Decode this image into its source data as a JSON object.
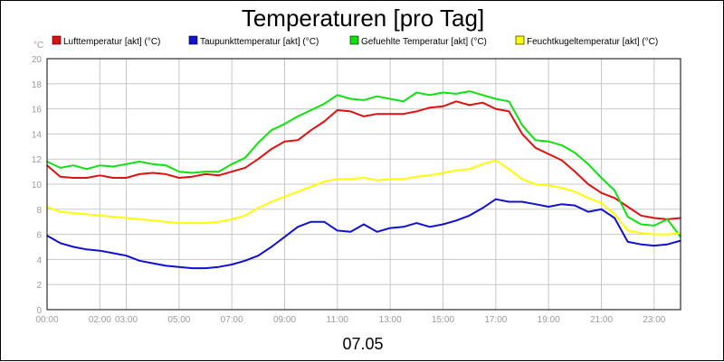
{
  "chart_data": {
    "type": "line",
    "title": "Temperaturen [pro Tag]",
    "date_label": "07.05",
    "y_unit": "°C",
    "ylim": [
      0,
      20
    ],
    "y_ticks": [
      0,
      2,
      4,
      6,
      8,
      10,
      12,
      14,
      16,
      18,
      20
    ],
    "xlim": [
      0,
      24
    ],
    "x_ticks": [
      {
        "label": "00:00",
        "value": 0
      },
      {
        "label": "02:00",
        "value": 2
      },
      {
        "label": "03:00",
        "value": 3
      },
      {
        "label": "05:00",
        "value": 5
      },
      {
        "label": "07:00",
        "value": 7
      },
      {
        "label": "09:00",
        "value": 9
      },
      {
        "label": "11:00",
        "value": 11
      },
      {
        "label": "13:00",
        "value": 13
      },
      {
        "label": "15:00",
        "value": 15
      },
      {
        "label": "17:00",
        "value": 17
      },
      {
        "label": "19:00",
        "value": 19
      },
      {
        "label": "21:00",
        "value": 21
      },
      {
        "label": "23:00",
        "value": 23
      }
    ],
    "grid": true,
    "legend_position": "top",
    "series": [
      {
        "name": "Lufttemperatur [akt] (°C)",
        "color": "#e01010",
        "x": [
          0,
          0.5,
          1,
          1.5,
          2,
          2.5,
          3,
          3.5,
          4,
          4.5,
          5,
          5.5,
          6,
          6.5,
          7,
          7.5,
          8,
          8.5,
          9,
          9.5,
          10,
          10.5,
          11,
          11.5,
          12,
          12.5,
          13,
          13.5,
          14,
          14.5,
          15,
          15.5,
          16,
          16.5,
          17,
          17.5,
          18,
          18.5,
          19,
          19.5,
          20,
          20.5,
          21,
          21.5,
          22,
          22.5,
          23,
          23.5,
          24
        ],
        "y": [
          11.5,
          10.6,
          10.5,
          10.5,
          10.7,
          10.5,
          10.5,
          10.8,
          10.9,
          10.8,
          10.5,
          10.6,
          10.8,
          10.7,
          11.0,
          11.3,
          12.0,
          12.8,
          13.4,
          13.5,
          14.3,
          15.0,
          15.9,
          15.8,
          15.4,
          15.6,
          15.6,
          15.6,
          15.8,
          16.1,
          16.2,
          16.6,
          16.3,
          16.5,
          16.0,
          15.8,
          14.0,
          12.9,
          12.4,
          11.9,
          11.0,
          10.0,
          9.3,
          8.9,
          8.2,
          7.5,
          7.3,
          7.2,
          7.3
        ]
      },
      {
        "name": "Taupunkttemperatur [akt] (°C)",
        "color": "#1010d0",
        "x": [
          0,
          0.5,
          1,
          1.5,
          2,
          2.5,
          3,
          3.5,
          4,
          4.5,
          5,
          5.5,
          6,
          6.5,
          7,
          7.5,
          8,
          8.5,
          9,
          9.5,
          10,
          10.5,
          11,
          11.5,
          12,
          12.5,
          13,
          13.5,
          14,
          14.5,
          15,
          15.5,
          16,
          16.5,
          17,
          17.5,
          18,
          18.5,
          19,
          19.5,
          20,
          20.5,
          21,
          21.5,
          22,
          22.5,
          23,
          23.5,
          24
        ],
        "y": [
          5.9,
          5.3,
          5.0,
          4.8,
          4.7,
          4.5,
          4.3,
          3.9,
          3.7,
          3.5,
          3.4,
          3.3,
          3.3,
          3.4,
          3.6,
          3.9,
          4.3,
          5.0,
          5.8,
          6.6,
          7.0,
          7.0,
          6.3,
          6.2,
          6.8,
          6.2,
          6.5,
          6.6,
          6.9,
          6.6,
          6.8,
          7.1,
          7.5,
          8.1,
          8.8,
          8.6,
          8.6,
          8.4,
          8.2,
          8.4,
          8.3,
          7.8,
          8.0,
          7.3,
          5.4,
          5.2,
          5.1,
          5.2,
          5.5
        ]
      },
      {
        "name": "Gefuehlte Temperatur [akt] (°C)",
        "color": "#10e010",
        "x": [
          0,
          0.5,
          1,
          1.5,
          2,
          2.5,
          3,
          3.5,
          4,
          4.5,
          5,
          5.5,
          6,
          6.5,
          7,
          7.5,
          8,
          8.5,
          9,
          9.5,
          10,
          10.5,
          11,
          11.5,
          12,
          12.5,
          13,
          13.5,
          14,
          14.5,
          15,
          15.5,
          16,
          16.5,
          17,
          17.5,
          18,
          18.5,
          19,
          19.5,
          20,
          20.5,
          21,
          21.5,
          22,
          22.5,
          23,
          23.5,
          24
        ],
        "y": [
          11.8,
          11.3,
          11.5,
          11.2,
          11.5,
          11.4,
          11.6,
          11.8,
          11.6,
          11.5,
          11.0,
          10.9,
          11.0,
          11.0,
          11.6,
          12.1,
          13.3,
          14.3,
          14.8,
          15.4,
          15.9,
          16.4,
          17.1,
          16.8,
          16.7,
          17.0,
          16.8,
          16.6,
          17.3,
          17.1,
          17.3,
          17.2,
          17.4,
          17.1,
          16.8,
          16.6,
          14.7,
          13.5,
          13.4,
          13.1,
          12.5,
          11.6,
          10.5,
          9.5,
          7.4,
          6.8,
          6.7,
          7.2,
          5.8
        ]
      },
      {
        "name": "Feuchtkugeltemperatur [akt] (°C)",
        "color": "#ffff00",
        "x": [
          0,
          0.5,
          1,
          1.5,
          2,
          2.5,
          3,
          3.5,
          4,
          4.5,
          5,
          5.5,
          6,
          6.5,
          7,
          7.5,
          8,
          8.5,
          9,
          9.5,
          10,
          10.5,
          11,
          11.5,
          12,
          12.5,
          13,
          13.5,
          14,
          14.5,
          15,
          15.5,
          16,
          16.5,
          17,
          17.5,
          18,
          18.5,
          19,
          19.5,
          20,
          20.5,
          21,
          21.5,
          22,
          22.5,
          23,
          23.5,
          24
        ],
        "y": [
          8.2,
          7.8,
          7.7,
          7.6,
          7.5,
          7.4,
          7.3,
          7.2,
          7.1,
          7.0,
          6.9,
          6.9,
          6.9,
          7.0,
          7.2,
          7.5,
          8.1,
          8.6,
          9.0,
          9.4,
          9.8,
          10.2,
          10.4,
          10.4,
          10.5,
          10.3,
          10.4,
          10.4,
          10.6,
          10.7,
          10.9,
          11.1,
          11.2,
          11.6,
          11.9,
          11.2,
          10.4,
          10.0,
          9.9,
          9.7,
          9.4,
          8.9,
          8.5,
          7.6,
          6.3,
          6.1,
          6.0,
          6.0,
          6.1
        ]
      }
    ]
  }
}
